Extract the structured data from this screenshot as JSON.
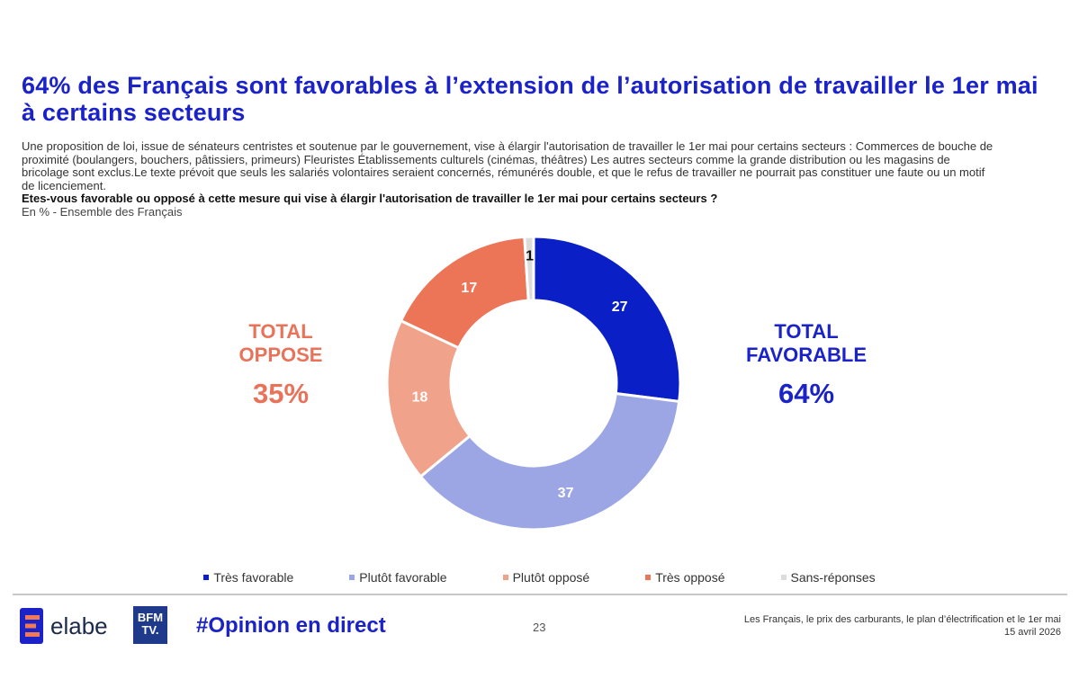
{
  "title": "64% des Français sont favorables à l’extension de l’autorisation de travailler le 1er mai à certains secteurs",
  "intro": {
    "context": "Une proposition de loi, issue de sénateurs centristes et soutenue par le gouvernement, vise à élargir l'autorisation de travailler le 1er mai pour certains secteurs : Commerces de bouche de proximité (boulangers, bouchers, pâtissiers, primeurs) Fleuristes Établissements culturels (cinémas, théâtres)  Les autres secteurs comme la grande distribution ou les magasins de bricolage sont exclus.Le texte prévoit que seuls les salariés volontaires seraient concernés, rémunérés double, et que le refus de travailler ne pourrait pas constituer une faute ou un motif de licenciement.",
    "question": "Etes-vous favorable ou opposé à cette mesure qui vise à élargir l'autorisation de travailler le 1er mai pour certains secteurs ?",
    "base": "En % - Ensemble des Français"
  },
  "totals": {
    "oppose": {
      "line1": "TOTAL",
      "line2": "OPPOSE",
      "value": "35%"
    },
    "favorable": {
      "line1": "TOTAL",
      "line2": "FAVORABLE",
      "value": "64%"
    }
  },
  "chart_data": {
    "type": "pie",
    "subtype": "donut",
    "unit": "%",
    "categories": [
      "Très favorable",
      "Plutôt favorable",
      "Plutôt opposé",
      "Très opposé",
      "Sans-réponses"
    ],
    "values": [
      27,
      37,
      18,
      17,
      1
    ],
    "colors": [
      "#0a1fc6",
      "#9ca6e4",
      "#f0a28a",
      "#ec7557",
      "#dcdcdc"
    ],
    "label_colors": [
      "#ffffff",
      "#ffffff",
      "#ffffff",
      "#ffffff",
      "#111111"
    ],
    "legend_position": "bottom"
  },
  "footer": {
    "brand": "elabe",
    "partner_line1": "BFM",
    "partner_line2": "TV.",
    "hashtag": "#Opinion en direct",
    "page_number": "23",
    "study_title": "Les Français, le prix des carburants, le plan d’électrification et le 1er mai",
    "date": "15 avril 2026"
  }
}
